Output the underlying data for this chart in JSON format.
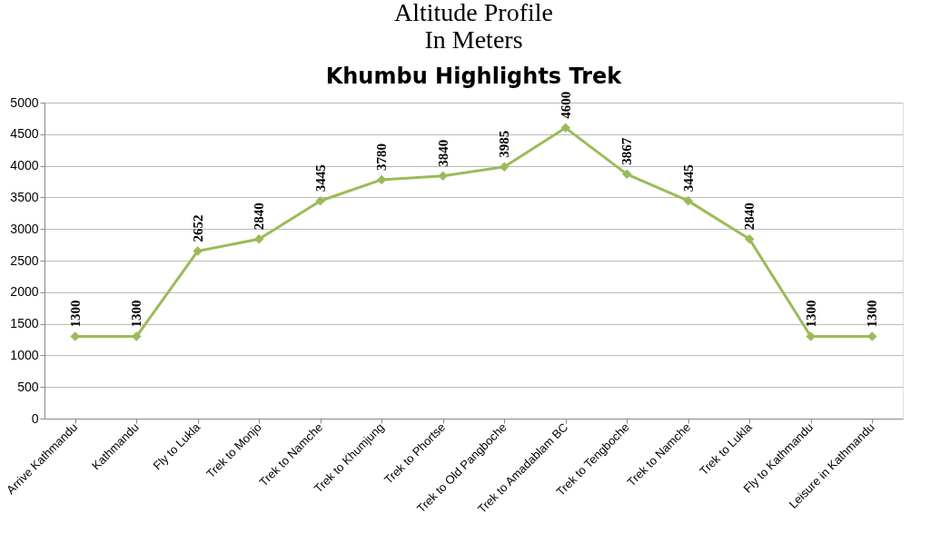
{
  "chart_data": {
    "type": "line",
    "title": "Altitude Profile\nIn Meters",
    "subtitle": "Khumbu Highlights Trek",
    "categories": [
      "Arrive Kathmandu",
      "Kathmandu",
      "Fly to Lukla",
      "Trek to Monjo",
      "Trek to Namche",
      "Trek to Khumjung",
      "Trek to Phortse",
      "Trek to Old Pangboche",
      "Trek to Amadablam BC",
      "Trek to Tengboche",
      "Trek to Namche",
      "Trek to Lukla",
      "Fly to Kathmandu",
      "Leisure in Kathmandu"
    ],
    "series": [
      {
        "color": "#9bbb59",
        "values": [
          1300,
          1300,
          2652,
          2840,
          3445,
          3780,
          3840,
          3985,
          4600,
          3867,
          3445,
          2840,
          1300,
          1300
        ]
      }
    ],
    "ylim": [
      0,
      5000
    ],
    "yticks": [
      0,
      500,
      1000,
      1500,
      2000,
      2500,
      3000,
      3500,
      4000,
      4500,
      5000
    ],
    "grid": "y",
    "marker": "diamond",
    "line_style": "solid",
    "data_labels": true
  }
}
